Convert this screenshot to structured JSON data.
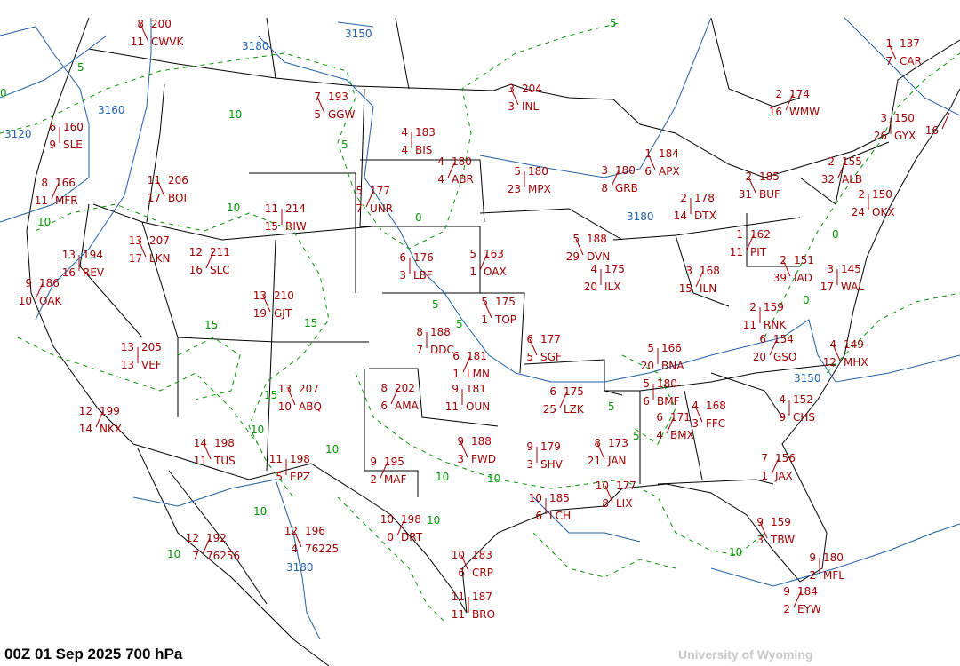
{
  "map": {
    "title": "00Z 01 Sep 2025  700 hPa",
    "credit": "University of Wyoming",
    "colors": {
      "station": "#a00000",
      "height_contour": "#1f5fa8",
      "isotherm": "#009900",
      "geography": "#000000"
    },
    "height_contour_labels": [
      "3180",
      "3150",
      "3120",
      "3160",
      "3180",
      "3150",
      "3180"
    ],
    "isotherm_labels": [
      "5",
      "10",
      "5",
      "10",
      "5",
      "0",
      "0",
      "10",
      "15",
      "15",
      "5",
      "5",
      "15",
      "10",
      "10",
      "10",
      "10",
      "10",
      "10",
      "10",
      "5",
      "5",
      "10",
      "0",
      "0"
    ],
    "stations": [
      {
        "id": "CWVK",
        "t": "8",
        "h": "200",
        "dd": "11"
      },
      {
        "id": "SLE",
        "t": "6",
        "h": "160",
        "dd": "9"
      },
      {
        "id": "MFR",
        "t": "8",
        "h": "166",
        "dd": "11"
      },
      {
        "id": "BOI",
        "t": "11",
        "h": "206",
        "dd": "17"
      },
      {
        "id": "RIW",
        "t": "11",
        "h": "214",
        "dd": "15"
      },
      {
        "id": "UNR",
        "t": "5",
        "h": "177",
        "dd": "7"
      },
      {
        "id": "GGW",
        "t": "7",
        "h": "193",
        "dd": "5"
      },
      {
        "id": "BIS",
        "t": "4",
        "h": "183",
        "dd": "4"
      },
      {
        "id": "ABR",
        "t": "4",
        "h": "180",
        "dd": "4"
      },
      {
        "id": "INL",
        "t": "3",
        "h": "204",
        "dd": "3"
      },
      {
        "id": "MPX",
        "t": "5",
        "h": "180",
        "dd": "23"
      },
      {
        "id": "GRB",
        "t": "3",
        "h": "180",
        "dd": "8"
      },
      {
        "id": "APX",
        "t": "1",
        "h": "184",
        "dd": "6"
      },
      {
        "id": "DTX",
        "t": "2",
        "h": "178",
        "dd": "14"
      },
      {
        "id": "WMW",
        "t": "2",
        "h": "174",
        "dd": "16"
      },
      {
        "id": "CAR",
        "t": "-1",
        "h": "137",
        "dd": "7"
      },
      {
        "id": "GYX",
        "t": "3",
        "h": "150",
        "dd": "26"
      },
      {
        "id": "ALB",
        "t": "2",
        "h": "155",
        "dd": "32"
      },
      {
        "id": "BUF",
        "t": "2",
        "h": "185",
        "dd": "31"
      },
      {
        "id": "OKX",
        "t": "2",
        "h": "150",
        "dd": "24"
      },
      {
        "id": "PIT",
        "t": "1",
        "h": "162",
        "dd": "11"
      },
      {
        "id": "IAD",
        "t": "2",
        "h": "151",
        "dd": "39"
      },
      {
        "id": "WAL",
        "t": "3",
        "h": "145",
        "dd": "17"
      },
      {
        "id": "ILN",
        "t": "3",
        "h": "168",
        "dd": "15"
      },
      {
        "id": "DVN",
        "t": "5",
        "h": "188",
        "dd": "29"
      },
      {
        "id": "ILX",
        "t": "4",
        "h": "175",
        "dd": "20"
      },
      {
        "id": "OAX",
        "t": "5",
        "h": "163",
        "dd": "1"
      },
      {
        "id": "TOP",
        "t": "5",
        "h": "175",
        "dd": "1"
      },
      {
        "id": "LBF",
        "t": "6",
        "h": "176",
        "dd": "3"
      },
      {
        "id": "SLC",
        "t": "12",
        "h": "211",
        "dd": "16"
      },
      {
        "id": "LKN",
        "t": "13",
        "h": "207",
        "dd": "17"
      },
      {
        "id": "REV",
        "t": "13",
        "h": "194",
        "dd": "16"
      },
      {
        "id": "OAK",
        "t": "9",
        "h": "186",
        "dd": "10"
      },
      {
        "id": "GJT",
        "t": "13",
        "h": "210",
        "dd": "19"
      },
      {
        "id": "DDC",
        "t": "8",
        "h": "188",
        "dd": "7"
      },
      {
        "id": "LMN",
        "t": "6",
        "h": "181",
        "dd": "1"
      },
      {
        "id": "SGF",
        "t": "6",
        "h": "177",
        "dd": "5"
      },
      {
        "id": "OUN",
        "t": "9",
        "h": "181",
        "dd": "11"
      },
      {
        "id": "AMA",
        "t": "8",
        "h": "202",
        "dd": "6"
      },
      {
        "id": "ABQ",
        "t": "13",
        "h": "207",
        "dd": "10"
      },
      {
        "id": "VEF",
        "t": "13",
        "h": "205",
        "dd": "13"
      },
      {
        "id": "NKX",
        "t": "12",
        "h": "199",
        "dd": "14"
      },
      {
        "id": "TUS",
        "t": "14",
        "h": "198",
        "dd": "11"
      },
      {
        "id": "EPZ",
        "t": "11",
        "h": "198",
        "dd": "5"
      },
      {
        "id": "MAF",
        "t": "9",
        "h": "195",
        "dd": "2"
      },
      {
        "id": "FWD",
        "t": "9",
        "h": "188",
        "dd": "3"
      },
      {
        "id": "SHV",
        "t": "9",
        "h": "179",
        "dd": "3"
      },
      {
        "id": "LZK",
        "t": "6",
        "h": "175",
        "dd": "25"
      },
      {
        "id": "JAN",
        "t": "8",
        "h": "173",
        "dd": "21"
      },
      {
        "id": "BNA",
        "t": "5",
        "h": "166",
        "dd": "20"
      },
      {
        "id": "BMX",
        "t": "6",
        "h": "171",
        "dd": "4"
      },
      {
        "id": "FFC",
        "t": "4",
        "h": "168",
        "dd": "3"
      },
      {
        "id": "RNK",
        "t": "2",
        "h": "159",
        "dd": "11"
      },
      {
        "id": "GSO",
        "t": "6",
        "h": "154",
        "dd": "20"
      },
      {
        "id": "MHX",
        "t": "4",
        "h": "149",
        "dd": "12"
      },
      {
        "id": "CHS",
        "t": "4",
        "h": "152",
        "dd": "9"
      },
      {
        "id": "JAX",
        "t": "7",
        "h": "156",
        "dd": "1"
      },
      {
        "id": "TBW",
        "t": "9",
        "h": "159",
        "dd": "3"
      },
      {
        "id": "MFL",
        "t": "9",
        "h": "180",
        "dd": "2"
      },
      {
        "id": "EYW",
        "t": "9",
        "h": "184",
        "dd": "2"
      },
      {
        "id": "LIX",
        "t": "10",
        "h": "177",
        "dd": "8"
      },
      {
        "id": "LCH",
        "t": "10",
        "h": "185",
        "dd": "6"
      },
      {
        "id": "DRT",
        "t": "10",
        "h": "198",
        "dd": "0"
      },
      {
        "id": "CRP",
        "t": "10",
        "h": "183",
        "dd": "6"
      },
      {
        "id": "BRO",
        "t": "11",
        "h": "187",
        "dd": "11"
      },
      {
        "id": "76256",
        "t": "12",
        "h": "192",
        "dd": "7"
      },
      {
        "id": "76225",
        "t": "12",
        "h": "196",
        "dd": "4"
      },
      {
        "id": "BMF",
        "t": "5",
        "h": "180",
        "dd": "6"
      },
      {
        "id": "",
        "t": "",
        "h": "",
        "dd": "16"
      }
    ]
  }
}
